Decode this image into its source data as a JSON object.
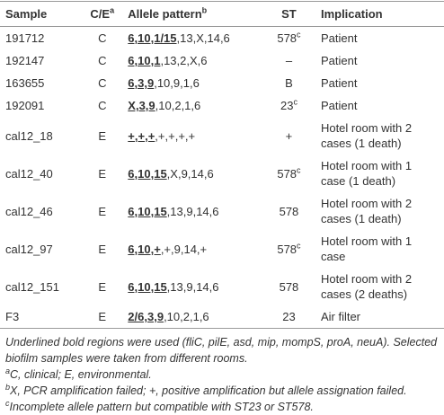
{
  "table": {
    "headers": [
      {
        "text": "Sample"
      },
      {
        "text": "C/E",
        "sup": "a"
      },
      {
        "text": "Allele pattern",
        "sup": "b"
      },
      {
        "text": "ST"
      },
      {
        "text": "Implication"
      }
    ],
    "rows": [
      {
        "sample": "191712",
        "ce": "C",
        "allele_bold": "6,10,1/15",
        "allele_rest": ",13,X,14,6",
        "st": "578",
        "st_sup": "c",
        "implication": "Patient"
      },
      {
        "sample": "192147",
        "ce": "C",
        "allele_bold": "6,10,1",
        "allele_rest": ",13,2,X,6",
        "st": "–",
        "implication": "Patient"
      },
      {
        "sample": "163655",
        "ce": "C",
        "allele_bold": "6,3,9",
        "allele_rest": ",10,9,1,6",
        "st": "B",
        "implication": "Patient"
      },
      {
        "sample": "192091",
        "ce": "C",
        "allele_bold": "X,3,9",
        "allele_rest": ",10,2,1,6",
        "st": "23",
        "st_sup": "c",
        "implication": "Patient"
      },
      {
        "sample": "cal12_18",
        "ce": "E",
        "allele_bold": "+,+,+",
        "allele_rest": ",+,+,+,+",
        "st": "+",
        "implication": "Hotel room with 2 cases (1 death)"
      },
      {
        "sample": "cal12_40",
        "ce": "E",
        "allele_bold": "6,10,15",
        "allele_rest": ",X,9,14,6",
        "st": "578",
        "st_sup": "c",
        "implication": "Hotel room with 1 case (1 death)"
      },
      {
        "sample": "cal12_46",
        "ce": "E",
        "allele_bold": "6,10,15",
        "allele_rest": ",13,9,14,6",
        "st": "578",
        "implication": "Hotel room with 2 cases (1 death)"
      },
      {
        "sample": "cal12_97",
        "ce": "E",
        "allele_bold": "6,10,+",
        "allele_rest": ",+,9,14,+",
        "st": "578",
        "st_sup": "c",
        "implication": "Hotel room with 1 case"
      },
      {
        "sample": "cal12_151",
        "ce": "E",
        "allele_bold": "6,10,15",
        "allele_rest": ",13,9,14,6",
        "st": "578",
        "implication": "Hotel room with 2 cases (2 deaths)"
      },
      {
        "sample": "F3",
        "ce": "E",
        "allele_bold": "2/6,3,9",
        "allele_rest": ",10,2,1,6",
        "st": "23",
        "implication": "Air filter"
      }
    ]
  },
  "notes": {
    "main": "Underlined bold regions were used (fliC, pilE, asd, mip, mompS, proA, neuA). Selected biofilm samples were taken from different rooms.",
    "footnotes": [
      {
        "mark": "a",
        "text": "C, clinical; E, environmental."
      },
      {
        "mark": "b",
        "text": "X, PCR amplification failed; +, positive amplification but allele assignation failed."
      },
      {
        "mark": "c",
        "text": "Incomplete allele pattern but compatible with ST23 or ST578."
      }
    ]
  }
}
